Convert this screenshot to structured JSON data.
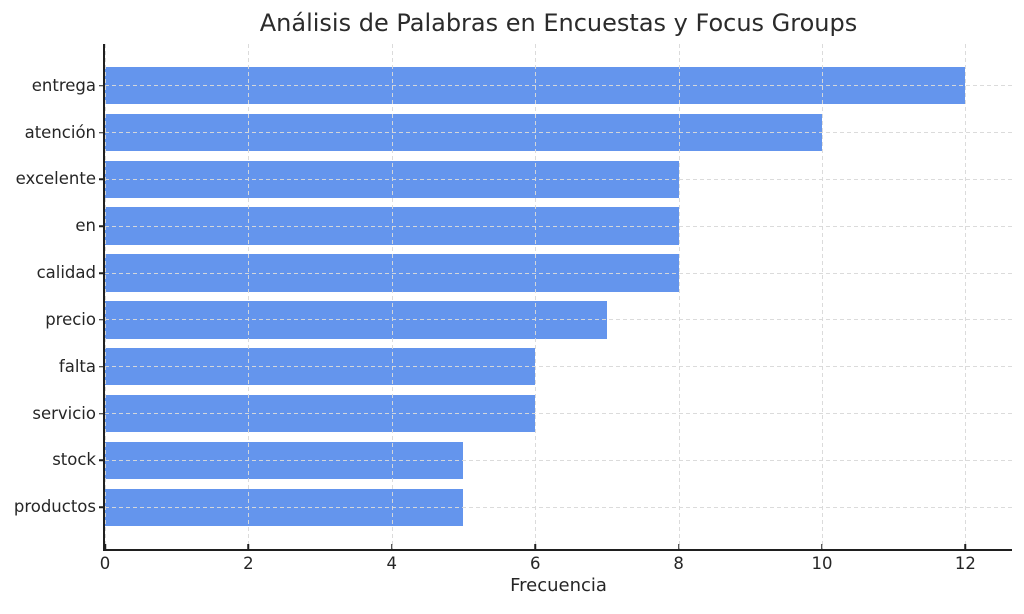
{
  "figure": {
    "background": "#ffffff"
  },
  "chart_data": {
    "type": "bar",
    "orientation": "horizontal",
    "title": "Análisis de Palabras en Encuestas y Focus Groups",
    "xlabel": "Frecuencia",
    "ylabel": "",
    "categories": [
      "entrega",
      "atención",
      "excelente",
      "en",
      "calidad",
      "precio",
      "falta",
      "servicio",
      "stock",
      "productos"
    ],
    "values": [
      12,
      10,
      8,
      8,
      8,
      7,
      6,
      6,
      5,
      5
    ],
    "xticks": [
      0,
      2,
      4,
      6,
      8,
      10,
      12
    ],
    "xlim": [
      0,
      12.65
    ],
    "bar_color": "#6495ed",
    "bar_height_fraction": 0.8,
    "grid": {
      "show": true,
      "style": "dashed",
      "color": "#d9d9d9",
      "axes": "both",
      "over_bars": true
    },
    "legend": "none",
    "text_color": "#262626",
    "spine_color": "#1f1f1f",
    "spines_visible": [
      "left",
      "bottom"
    ]
  }
}
